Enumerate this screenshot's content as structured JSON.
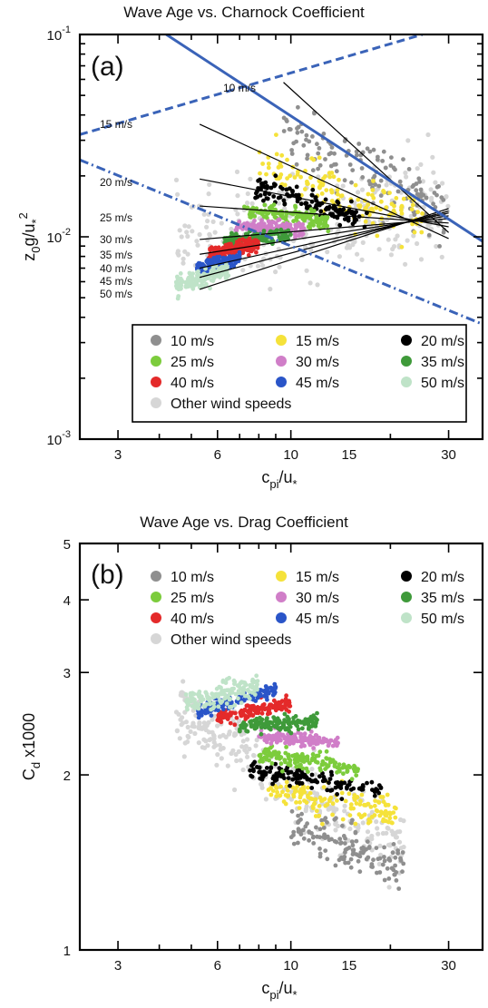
{
  "chart_data": [
    {
      "type": "scatter",
      "title": "Wave Age vs. Charnock Coefficient",
      "panel_label": "(a)",
      "xlabel": "c_pi/u_*",
      "ylabel": "z_0g/u_*^2",
      "xscale": "log",
      "yscale": "log",
      "xlim": [
        2.3,
        38
      ],
      "ylim": [
        0.001,
        0.1
      ],
      "xticks": [
        3,
        6,
        10,
        15,
        30
      ],
      "xtick_labels": [
        "3",
        "6",
        "10",
        "15",
        "30"
      ],
      "ytick_labels": [
        {
          "value": 0.1,
          "base": "10",
          "exp": "-1"
        },
        {
          "value": 0.01,
          "base": "10",
          "exp": "-2"
        },
        {
          "value": 0.001,
          "base": "10",
          "exp": "-3"
        }
      ],
      "grid": false,
      "legend_position": "bottom",
      "series": [
        {
          "name": "10 m/s",
          "color": "#8f8f8f",
          "x_range": [
            9.5,
            30
          ],
          "y_at_start": 0.033,
          "y_at_end": 0.013,
          "spread": 1.6
        },
        {
          "name": "15 m/s",
          "color": "#f5e23a",
          "x_range": [
            8,
            25
          ],
          "y_at_start": 0.022,
          "y_at_end": 0.012,
          "spread": 1.5
        },
        {
          "name": "20 m/s",
          "color": "#000000",
          "x_range": [
            7.8,
            17
          ],
          "y_at_start": 0.0175,
          "y_at_end": 0.0122,
          "spread": 1.2
        },
        {
          "name": "25 m/s",
          "color": "#7ccc3c",
          "x_range": [
            7.2,
            13
          ],
          "y_at_start": 0.0138,
          "y_at_end": 0.0118,
          "spread": 1.15
        },
        {
          "name": "30 m/s",
          "color": "#d07ec8",
          "x_range": [
            6.8,
            11
          ],
          "y_at_start": 0.0112,
          "y_at_end": 0.011,
          "spread": 1.12
        },
        {
          "name": "35 m/s",
          "color": "#3f9a3a",
          "x_range": [
            6.3,
            10
          ],
          "y_at_start": 0.0095,
          "y_at_end": 0.0102,
          "spread": 1.12
        },
        {
          "name": "40 m/s",
          "color": "#e42a2a",
          "x_range": [
            5.6,
            8
          ],
          "y_at_start": 0.0082,
          "y_at_end": 0.0092,
          "spread": 1.12
        },
        {
          "name": "45 m/s",
          "color": "#2a55c8",
          "x_range": [
            5.2,
            7
          ],
          "y_at_start": 0.007,
          "y_at_end": 0.0078,
          "spread": 1.1
        },
        {
          "name": "50 m/s",
          "color": "#bfe3c8",
          "x_range": [
            4.5,
            6.5
          ],
          "y_at_start": 0.0058,
          "y_at_end": 0.0068,
          "spread": 1.15
        },
        {
          "name": "Other wind speeds",
          "color": "#d6d6d6",
          "x_range": [
            4.5,
            30
          ],
          "y_at_start": 0.009,
          "y_at_end": 0.015,
          "spread": 2.2
        }
      ],
      "fit_lines": [
        {
          "label": "10 m/s",
          "x1": 9.5,
          "y1": 0.058,
          "x2": 30,
          "y2": 0.0105
        },
        {
          "label": "15 m/s",
          "x1": 5.3,
          "y1": 0.036,
          "x2": 30,
          "y2": 0.0098
        },
        {
          "label": "20 m/s",
          "x1": 5.3,
          "y1": 0.0193,
          "x2": 30,
          "y2": 0.0112
        },
        {
          "label": "25 m/s",
          "x1": 5.3,
          "y1": 0.0142,
          "x2": 30,
          "y2": 0.0117
        },
        {
          "label": "30 m/s",
          "x1": 5.3,
          "y1": 0.0097,
          "x2": 30,
          "y2": 0.0123
        },
        {
          "label": "35 m/s",
          "x1": 5.3,
          "y1": 0.0082,
          "x2": 30,
          "y2": 0.0127
        },
        {
          "label": "40 m/s",
          "x1": 5.3,
          "y1": 0.007,
          "x2": 30,
          "y2": 0.0131
        },
        {
          "label": "45 m/s",
          "x1": 5.3,
          "y1": 0.0063,
          "x2": 30,
          "y2": 0.0134
        },
        {
          "label": "50 m/s",
          "x1": 5.3,
          "y1": 0.0055,
          "x2": 30,
          "y2": 0.0138
        }
      ],
      "reference_lines": [
        {
          "style": "solid",
          "color": "#3a63b8",
          "x1": 4.2,
          "y1": 0.1,
          "x2": 38,
          "y2": 0.0095
        },
        {
          "style": "dashed",
          "color": "#3a63b8",
          "x1": 2.3,
          "y1": 0.032,
          "x2": 25,
          "y2": 0.1
        },
        {
          "style": "dashdot",
          "color": "#3a63b8",
          "x1": 2.3,
          "y1": 0.024,
          "x2": 38,
          "y2": 0.0037
        }
      ]
    },
    {
      "type": "scatter",
      "title": "Wave Age vs. Drag Coefficient",
      "panel_label": "(b)",
      "xlabel": "c_pi/u_*",
      "ylabel": "C_d x1000",
      "xscale": "log",
      "yscale": "log",
      "xlim": [
        2.3,
        38
      ],
      "ylim": [
        1,
        5
      ],
      "xticks": [
        3,
        6,
        10,
        15,
        30
      ],
      "xtick_labels": [
        "3",
        "6",
        "10",
        "15",
        "30"
      ],
      "yticks": [
        1,
        2,
        3,
        4,
        5
      ],
      "ytick_labels": [
        "1",
        "2",
        "3",
        "4",
        "5"
      ],
      "grid": false,
      "legend_position": "top",
      "series": [
        {
          "name": "10 m/s",
          "color": "#8f8f8f",
          "x_range": [
            10,
            22
          ],
          "y_at_start": 1.62,
          "y_at_end": 1.38,
          "spread": 1.15
        },
        {
          "name": "15 m/s",
          "color": "#f5e23a",
          "x_range": [
            8.5,
            21
          ],
          "y_at_start": 1.88,
          "y_at_end": 1.7,
          "spread": 1.09
        },
        {
          "name": "20 m/s",
          "color": "#000000",
          "x_range": [
            7.5,
            19
          ],
          "y_at_start": 2.05,
          "y_at_end": 1.87,
          "spread": 1.05
        },
        {
          "name": "25 m/s",
          "color": "#7ccc3c",
          "x_range": [
            8,
            16
          ],
          "y_at_start": 2.18,
          "y_at_end": 2.05,
          "spread": 1.05
        },
        {
          "name": "30 m/s",
          "color": "#d07ec8",
          "x_range": [
            8,
            14
          ],
          "y_at_start": 2.33,
          "y_at_end": 2.28,
          "spread": 1.04
        },
        {
          "name": "35 m/s",
          "color": "#3f9a3a",
          "x_range": [
            7,
            12
          ],
          "y_at_start": 2.42,
          "y_at_end": 2.48,
          "spread": 1.04
        },
        {
          "name": "40 m/s",
          "color": "#e42a2a",
          "x_range": [
            6,
            10
          ],
          "y_at_start": 2.5,
          "y_at_end": 2.65,
          "spread": 1.04
        },
        {
          "name": "45 m/s",
          "color": "#2a55c8",
          "x_range": [
            5.2,
            9
          ],
          "y_at_start": 2.58,
          "y_at_end": 2.8,
          "spread": 1.04
        },
        {
          "name": "50 m/s",
          "color": "#bfe3c8",
          "x_range": [
            4.8,
            8
          ],
          "y_at_start": 2.65,
          "y_at_end": 2.85,
          "spread": 1.07
        },
        {
          "name": "Other wind speeds",
          "color": "#d6d6d6",
          "x_range": [
            4.5,
            22
          ],
          "y_at_start": 2.6,
          "y_at_end": 1.45,
          "spread": 1.22
        }
      ]
    }
  ],
  "fit_line_labels": [
    "10 m/s",
    "15 m/s",
    "20 m/s",
    "25 m/s",
    "30 m/s",
    "35 m/s",
    "40 m/s",
    "45 m/s",
    "50 m/s"
  ],
  "legend_labels": [
    "10 m/s",
    "15 m/s",
    "20 m/s",
    "25 m/s",
    "30 m/s",
    "35 m/s",
    "40 m/s",
    "45 m/s",
    "50 m/s",
    "Other wind speeds"
  ]
}
